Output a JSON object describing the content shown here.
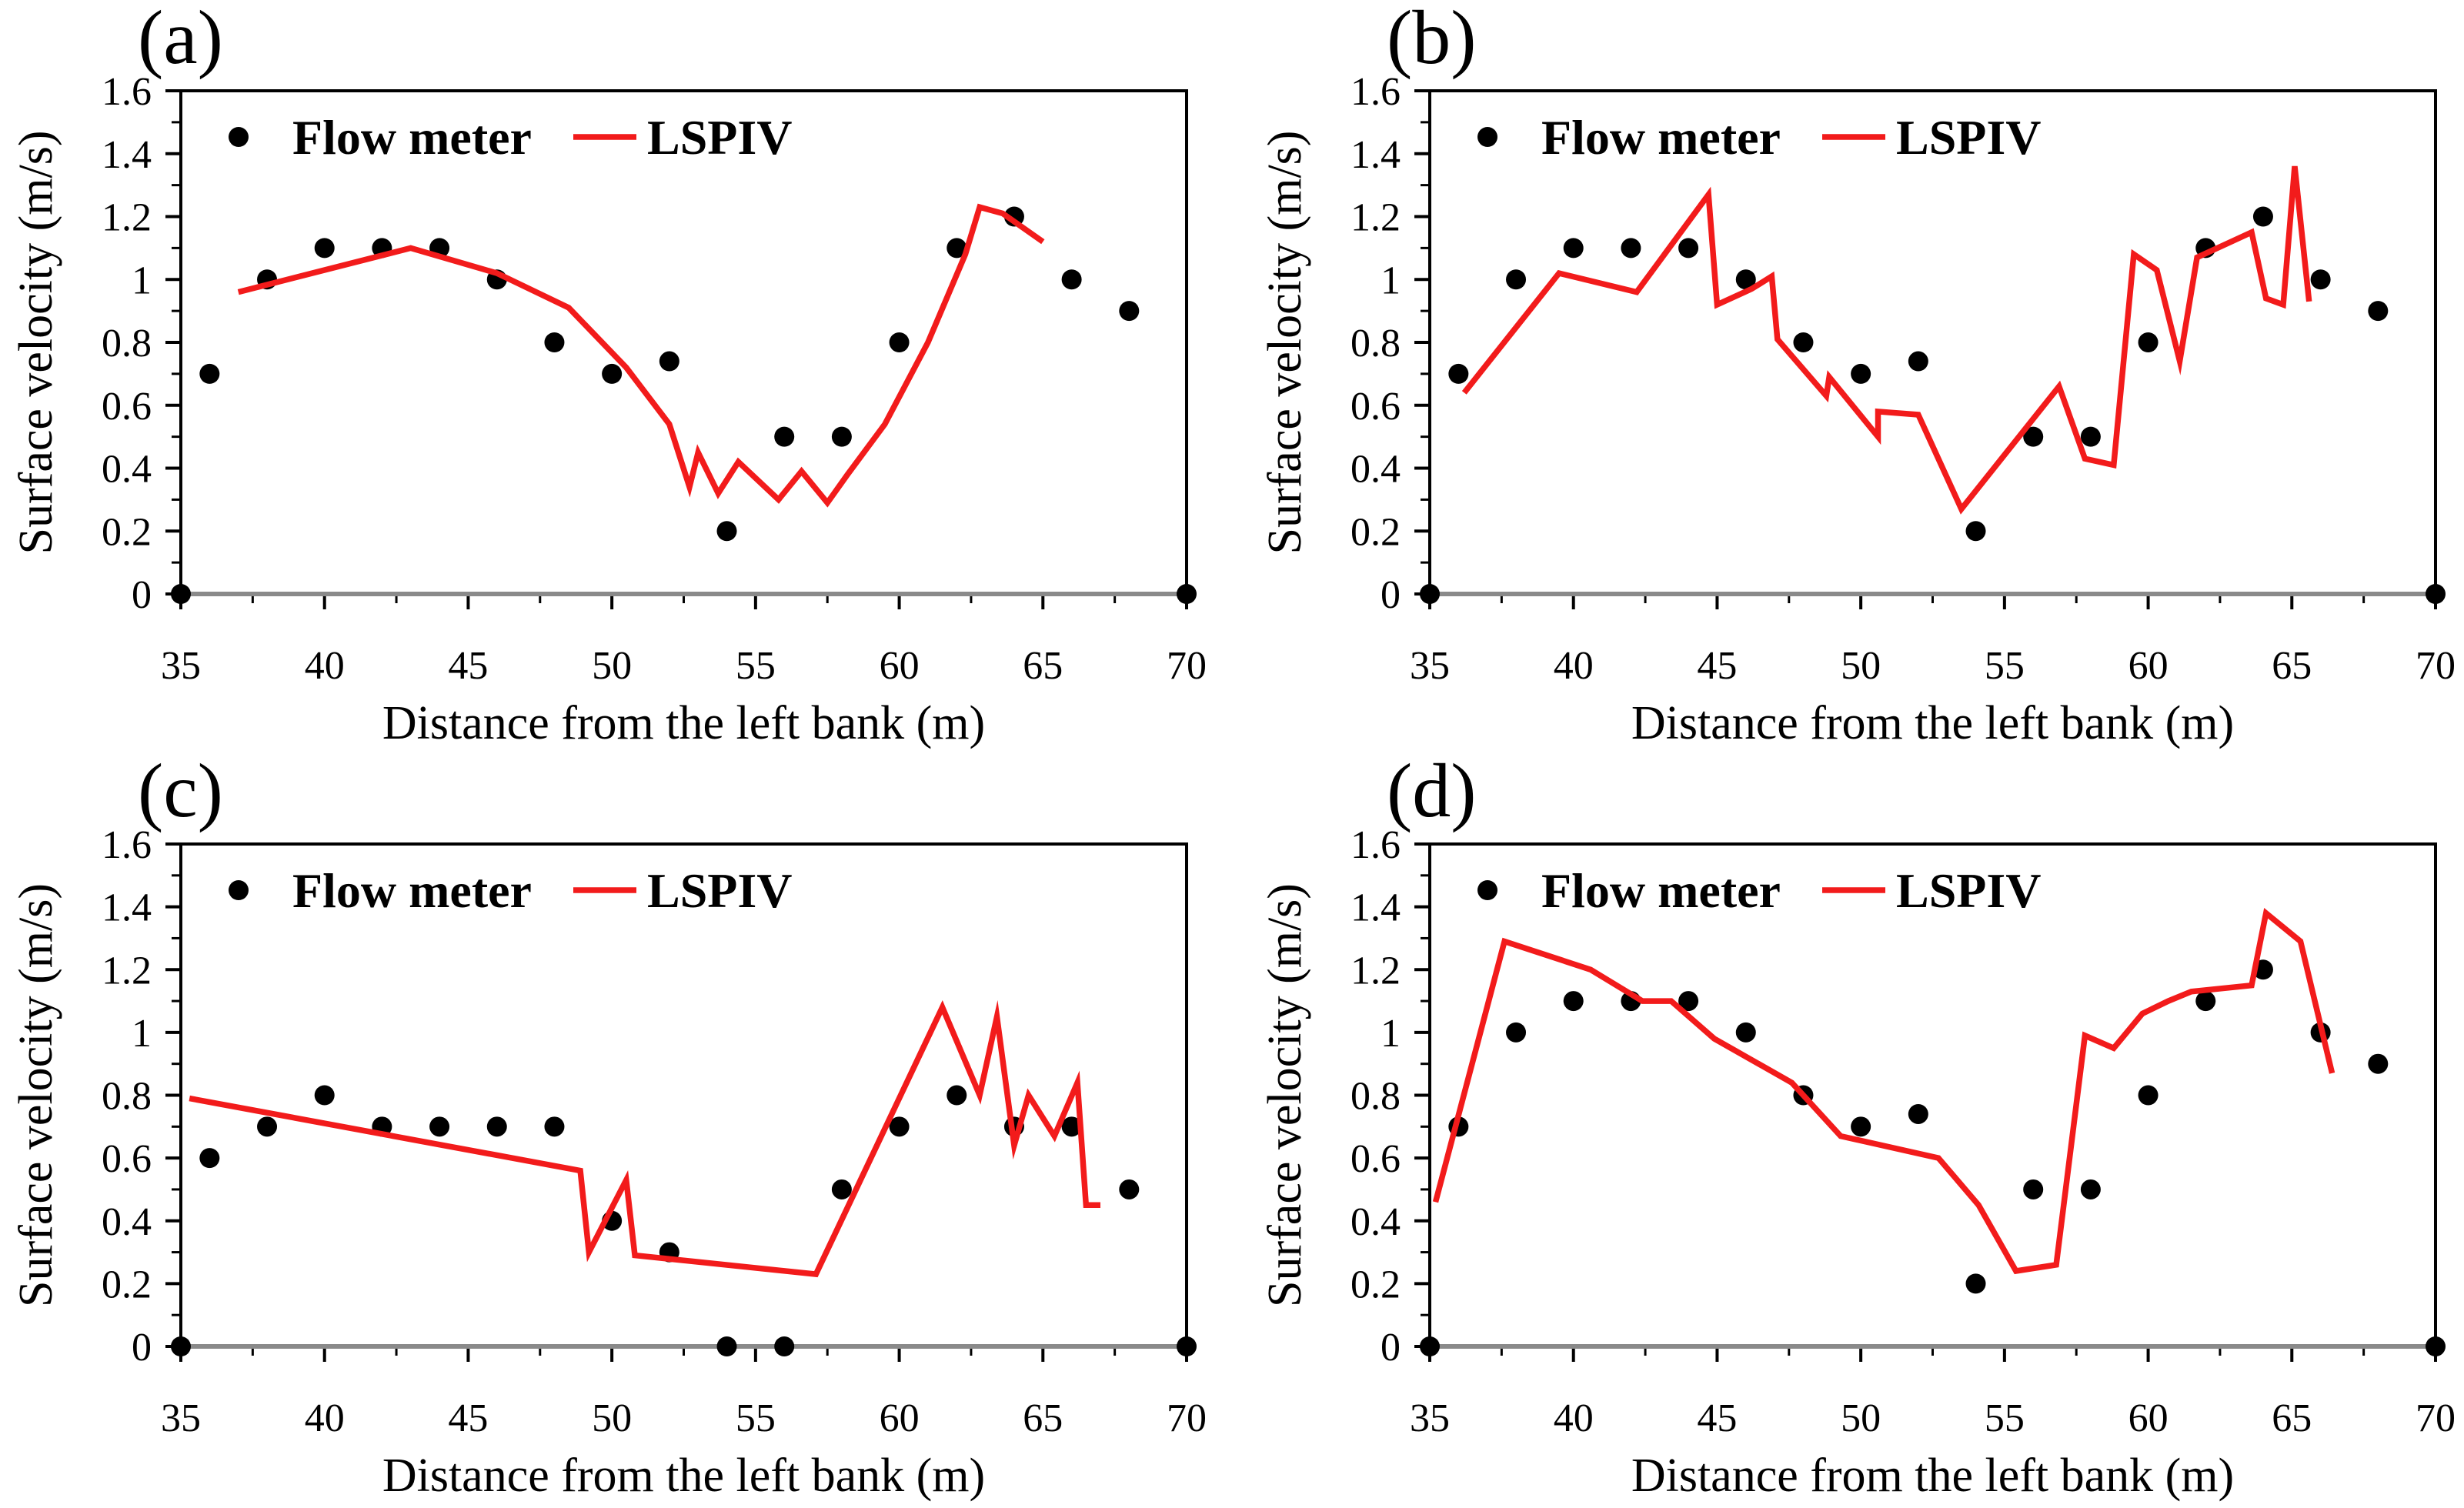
{
  "chart_data": [
    {
      "type": "line",
      "panel": "(a)",
      "xlabel": "Distance from the left bank (m)",
      "ylabel": "Surface velocity (m/s)",
      "xlim": [
        35,
        70
      ],
      "ylim": [
        0,
        1.6
      ],
      "xticks": [
        35,
        40,
        45,
        50,
        55,
        60,
        65,
        70
      ],
      "yticks": [
        0,
        0.2,
        0.4,
        0.6,
        0.8,
        1,
        1.2,
        1.4,
        1.6
      ],
      "grid": false,
      "legend": "top-left",
      "series": [
        {
          "name": "Flow meter",
          "type": "scatter",
          "color": "#000000",
          "points": [
            [
              35,
              0
            ],
            [
              36,
              0.7
            ],
            [
              38,
              1.0
            ],
            [
              40,
              1.1
            ],
            [
              42,
              1.1
            ],
            [
              44,
              1.1
            ],
            [
              46,
              1.0
            ],
            [
              48,
              0.8
            ],
            [
              50,
              0.7
            ],
            [
              52,
              0.74
            ],
            [
              54,
              0.2
            ],
            [
              56,
              0.5
            ],
            [
              58,
              0.5
            ],
            [
              60,
              0.8
            ],
            [
              62,
              1.1
            ],
            [
              64,
              1.2
            ],
            [
              66,
              1.0
            ],
            [
              68,
              0.9
            ],
            [
              70,
              0
            ]
          ]
        },
        {
          "name": "LSPIV",
          "type": "line",
          "color": "#f21b1b",
          "points": [
            [
              37.0,
              0.96
            ],
            [
              43.0,
              1.1
            ],
            [
              46.0,
              1.02
            ],
            [
              48.5,
              0.91
            ],
            [
              50.5,
              0.72
            ],
            [
              52.0,
              0.54
            ],
            [
              52.7,
              0.34
            ],
            [
              53.0,
              0.45
            ],
            [
              53.7,
              0.32
            ],
            [
              54.4,
              0.42
            ],
            [
              55.8,
              0.3
            ],
            [
              56.6,
              0.39
            ],
            [
              57.5,
              0.29
            ],
            [
              58.2,
              0.38
            ],
            [
              59.5,
              0.54
            ],
            [
              61.0,
              0.8
            ],
            [
              62.3,
              1.08
            ],
            [
              62.8,
              1.23
            ],
            [
              63.6,
              1.21
            ],
            [
              65.0,
              1.12
            ]
          ]
        }
      ]
    },
    {
      "type": "line",
      "panel": "(b)",
      "xlabel": "Distance from the left bank (m)",
      "ylabel": "Surface velocity (m/s)",
      "xlim": [
        35,
        70
      ],
      "ylim": [
        0,
        1.6
      ],
      "xticks": [
        35,
        40,
        45,
        50,
        55,
        60,
        65,
        70
      ],
      "yticks": [
        0,
        0.2,
        0.4,
        0.6,
        0.8,
        1,
        1.2,
        1.4,
        1.6
      ],
      "grid": false,
      "legend": "top-left",
      "series": [
        {
          "name": "Flow meter",
          "type": "scatter",
          "color": "#000000",
          "points": [
            [
              35,
              0
            ],
            [
              36,
              0.7
            ],
            [
              38,
              1.0
            ],
            [
              40,
              1.1
            ],
            [
              42,
              1.1
            ],
            [
              44,
              1.1
            ],
            [
              46,
              1.0
            ],
            [
              48,
              0.8
            ],
            [
              50,
              0.7
            ],
            [
              52,
              0.74
            ],
            [
              54,
              0.2
            ],
            [
              56,
              0.5
            ],
            [
              58,
              0.5
            ],
            [
              60,
              0.8
            ],
            [
              62,
              1.1
            ],
            [
              64,
              1.2
            ],
            [
              66,
              1.0
            ],
            [
              68,
              0.9
            ],
            [
              70,
              0
            ]
          ]
        },
        {
          "name": "LSPIV",
          "type": "line",
          "color": "#f21b1b",
          "points": [
            [
              36.2,
              0.64
            ],
            [
              39.5,
              1.02
            ],
            [
              42.2,
              0.96
            ],
            [
              44.7,
              1.27
            ],
            [
              45.0,
              0.92
            ],
            [
              46.2,
              0.97
            ],
            [
              46.9,
              1.01
            ],
            [
              47.1,
              0.81
            ],
            [
              48.8,
              0.63
            ],
            [
              48.9,
              0.69
            ],
            [
              50.6,
              0.5
            ],
            [
              50.6,
              0.58
            ],
            [
              52.0,
              0.57
            ],
            [
              53.5,
              0.27
            ],
            [
              56.9,
              0.66
            ],
            [
              57.8,
              0.43
            ],
            [
              58.8,
              0.41
            ],
            [
              59.5,
              1.08
            ],
            [
              60.3,
              1.03
            ],
            [
              61.1,
              0.74
            ],
            [
              61.7,
              1.07
            ],
            [
              63.6,
              1.15
            ],
            [
              64.1,
              0.94
            ],
            [
              64.7,
              0.92
            ],
            [
              65.1,
              1.36
            ],
            [
              65.6,
              0.93
            ]
          ]
        }
      ]
    },
    {
      "type": "line",
      "panel": "(c)",
      "xlabel": "Distance from the left bank (m)",
      "ylabel": "Surface velocity (m/s)",
      "xlim": [
        35,
        70
      ],
      "ylim": [
        0,
        1.6
      ],
      "xticks": [
        35,
        40,
        45,
        50,
        55,
        60,
        65,
        70
      ],
      "yticks": [
        0,
        0.2,
        0.4,
        0.6,
        0.8,
        1,
        1.2,
        1.4,
        1.6
      ],
      "grid": false,
      "legend": "top-left",
      "series": [
        {
          "name": "Flow meter",
          "type": "scatter",
          "color": "#000000",
          "points": [
            [
              35,
              0
            ],
            [
              36,
              0.6
            ],
            [
              38,
              0.7
            ],
            [
              40,
              0.8
            ],
            [
              42,
              0.7
            ],
            [
              44,
              0.7
            ],
            [
              46,
              0.7
            ],
            [
              48,
              0.7
            ],
            [
              50,
              0.4
            ],
            [
              52,
              0.3
            ],
            [
              54,
              0
            ],
            [
              56,
              0
            ],
            [
              58,
              0.5
            ],
            [
              60,
              0.7
            ],
            [
              62,
              0.8
            ],
            [
              64,
              0.7
            ],
            [
              66,
              0.7
            ],
            [
              68,
              0.5
            ],
            [
              70,
              0
            ]
          ]
        },
        {
          "name": "LSPIV",
          "type": "line",
          "color": "#f21b1b",
          "points": [
            [
              35.3,
              0.79
            ],
            [
              48.9,
              0.56
            ],
            [
              49.2,
              0.3
            ],
            [
              50.5,
              0.53
            ],
            [
              50.8,
              0.29
            ],
            [
              57.1,
              0.23
            ],
            [
              61.5,
              1.08
            ],
            [
              62.8,
              0.8
            ],
            [
              63.4,
              1.05
            ],
            [
              64.0,
              0.64
            ],
            [
              64.5,
              0.8
            ],
            [
              65.4,
              0.67
            ],
            [
              66.2,
              0.84
            ],
            [
              66.5,
              0.45
            ],
            [
              67.0,
              0.45
            ]
          ]
        }
      ]
    },
    {
      "type": "line",
      "panel": "(d)",
      "xlabel": "Distance from the left bank (m)",
      "ylabel": "Surface velocity (m/s)",
      "xlim": [
        35,
        70
      ],
      "ylim": [
        0,
        1.6
      ],
      "xticks": [
        35,
        40,
        45,
        50,
        55,
        60,
        65,
        70
      ],
      "yticks": [
        0,
        0.2,
        0.4,
        0.6,
        0.8,
        1,
        1.2,
        1.4,
        1.6
      ],
      "grid": false,
      "legend": "top-left",
      "series": [
        {
          "name": "Flow meter",
          "type": "scatter",
          "color": "#000000",
          "points": [
            [
              35,
              0
            ],
            [
              36,
              0.7
            ],
            [
              38,
              1.0
            ],
            [
              40,
              1.1
            ],
            [
              42,
              1.1
            ],
            [
              44,
              1.1
            ],
            [
              46,
              1.0
            ],
            [
              48,
              0.8
            ],
            [
              50,
              0.7
            ],
            [
              52,
              0.74
            ],
            [
              54,
              0.2
            ],
            [
              56,
              0.5
            ],
            [
              58,
              0.5
            ],
            [
              60,
              0.8
            ],
            [
              62,
              1.1
            ],
            [
              64,
              1.2
            ],
            [
              66,
              1.0
            ],
            [
              68,
              0.9
            ],
            [
              70,
              0
            ]
          ]
        },
        {
          "name": "LSPIV",
          "type": "line",
          "color": "#f21b1b",
          "points": [
            [
              35.2,
              0.46
            ],
            [
              37.6,
              1.29
            ],
            [
              40.6,
              1.2
            ],
            [
              42.4,
              1.1
            ],
            [
              43.4,
              1.1
            ],
            [
              44.9,
              0.98
            ],
            [
              47.6,
              0.84
            ],
            [
              49.3,
              0.67
            ],
            [
              52.7,
              0.6
            ],
            [
              54.1,
              0.45
            ],
            [
              55.4,
              0.24
            ],
            [
              56.8,
              0.26
            ],
            [
              57.8,
              0.99
            ],
            [
              58.8,
              0.95
            ],
            [
              59.8,
              1.06
            ],
            [
              60.7,
              1.1
            ],
            [
              61.5,
              1.13
            ],
            [
              63.6,
              1.15
            ],
            [
              64.1,
              1.38
            ],
            [
              65.3,
              1.29
            ],
            [
              66.4,
              0.87
            ]
          ]
        }
      ]
    }
  ]
}
